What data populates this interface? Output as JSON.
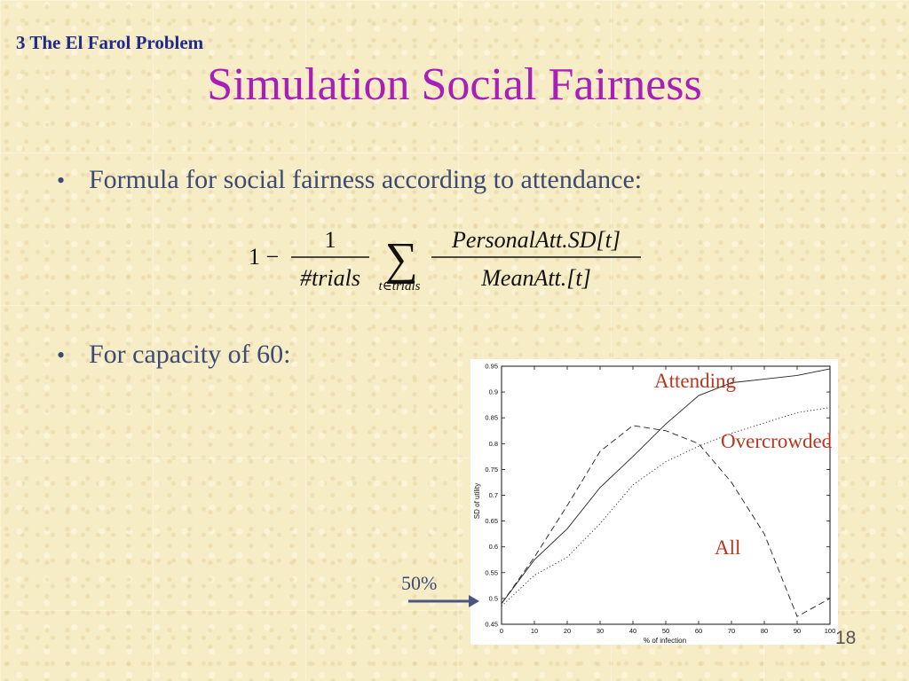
{
  "slide": {
    "section_label": "3 The El Farol Problem",
    "title": "Simulation Social Fairness",
    "bullet1": "Formula for social fairness according to attendance:",
    "bullet2": "For capacity of 60:",
    "bullet_symbol": "•",
    "page_number": "18"
  },
  "formula": {
    "lead": "1 −",
    "numerator_small": "1",
    "denominator_small": "#trials",
    "sum_symbol": "∑",
    "sum_subscript": "t∈trials",
    "numerator": "PersonalAtt.SD[t]",
    "denominator": "MeanAtt.[t]"
  },
  "annotations": {
    "attending": "Attending",
    "overcrowded": "Overcrowded",
    "all": "All",
    "pointer_label": "50%"
  },
  "chart_data": {
    "type": "line",
    "xlabel": "% of infection",
    "ylabel": "SD of utility",
    "x": [
      0,
      10,
      20,
      30,
      40,
      50,
      60,
      70,
      80,
      90,
      100
    ],
    "xlim": [
      0,
      100
    ],
    "ylim": [
      0.45,
      0.95
    ],
    "xticks": [
      0,
      10,
      20,
      30,
      40,
      50,
      60,
      70,
      80,
      90,
      100
    ],
    "yticks": [
      0.45,
      0.5,
      0.55,
      0.6,
      0.65,
      0.7,
      0.75,
      0.8,
      0.85,
      0.9,
      0.95
    ],
    "grid": false,
    "series": [
      {
        "style": "solid",
        "values": [
          0.49,
          0.575,
          0.635,
          0.715,
          0.775,
          0.838,
          0.893,
          0.918,
          0.925,
          0.932,
          0.945
        ]
      },
      {
        "style": "dashed",
        "values": [
          0.49,
          0.58,
          0.68,
          0.785,
          0.835,
          0.825,
          0.8,
          0.725,
          0.625,
          0.465,
          0.5
        ]
      },
      {
        "style": "dotted",
        "values": [
          0.485,
          0.545,
          0.58,
          0.645,
          0.72,
          0.765,
          0.795,
          0.82,
          0.84,
          0.86,
          0.87
        ]
      }
    ]
  }
}
